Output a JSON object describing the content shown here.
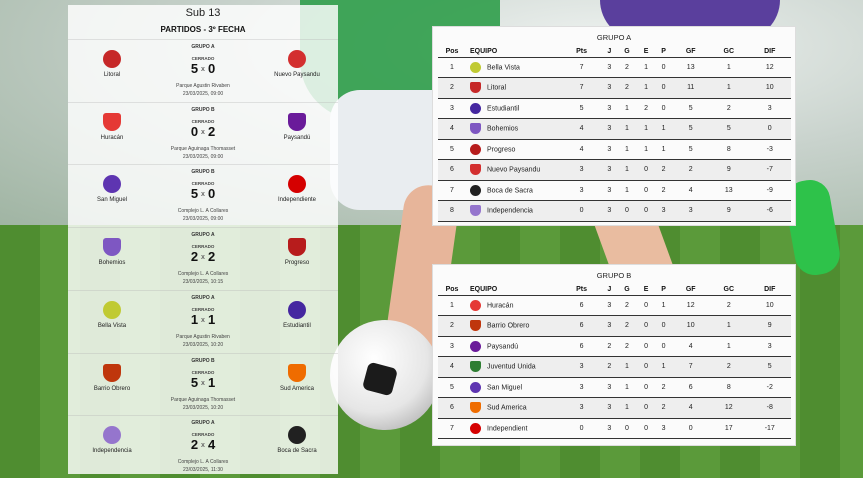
{
  "fixtures": {
    "title": "Sub 13",
    "subtitle": "PARTIDOS - 3º FECHA",
    "matches": [
      {
        "group": "GRUPO A",
        "status": "CERRADO",
        "home": "Litoral",
        "home_score": "5",
        "away_score": "0",
        "away": "Nuevo Paysandu",
        "venue": "Parque Agustin Rivaben",
        "date": "23/03/2025, 09:00"
      },
      {
        "group": "GRUPO B",
        "status": "CERRADO",
        "home": "Huracán",
        "home_score": "0",
        "away_score": "2",
        "away": "Paysandú",
        "venue": "Parque Aguinaga Thomasset",
        "date": "23/03/2025, 09:00"
      },
      {
        "group": "GRUPO B",
        "status": "CERRADO",
        "home": "San Miguel",
        "home_score": "5",
        "away_score": "0",
        "away": "Independiente",
        "venue": "Complejo L. A Collares",
        "date": "23/03/2025, 09:00"
      },
      {
        "group": "GRUPO A",
        "status": "CERRADO",
        "home": "Bohemios",
        "home_score": "2",
        "away_score": "2",
        "away": "Progreso",
        "venue": "Complejo L. A Collares",
        "date": "23/03/2025, 10:15"
      },
      {
        "group": "GRUPO A",
        "status": "CERRADO",
        "home": "Bella Vista",
        "home_score": "1",
        "away_score": "1",
        "away": "Estudiantil",
        "venue": "Parque Agustin Rivaben",
        "date": "23/03/2025, 10:20"
      },
      {
        "group": "GRUPO B",
        "status": "CERRADO",
        "home": "Barrio Obrero",
        "home_score": "5",
        "away_score": "1",
        "away": "Sud America",
        "venue": "Parque Aguinaga Thomasset",
        "date": "23/03/2025, 10:20"
      },
      {
        "group": "GRUPO A",
        "status": "CERRADO",
        "home": "Independencia",
        "home_score": "2",
        "away_score": "4",
        "away": "Boca de Sacra",
        "venue": "Complejo L. A Collares",
        "date": "23/03/2025, 11:30"
      }
    ],
    "score_separator": "x"
  },
  "headers": {
    "pos": "Pos",
    "equipo": "EQUIPO",
    "pts": "Pts",
    "j": "J",
    "g": "G",
    "e": "E",
    "p": "P",
    "gf": "GF",
    "gc": "GC",
    "dif": "DIF"
  },
  "group_a": {
    "title": "GRUPO A",
    "rows": [
      {
        "pos": "1",
        "team": "Bella Vista",
        "pts": "7",
        "j": "3",
        "g": "2",
        "e": "1",
        "p": "0",
        "gf": "13",
        "gc": "1",
        "dif": "12"
      },
      {
        "pos": "2",
        "team": "Litoral",
        "pts": "7",
        "j": "3",
        "g": "2",
        "e": "1",
        "p": "0",
        "gf": "11",
        "gc": "1",
        "dif": "10"
      },
      {
        "pos": "3",
        "team": "Estudiantil",
        "pts": "5",
        "j": "3",
        "g": "1",
        "e": "2",
        "p": "0",
        "gf": "5",
        "gc": "2",
        "dif": "3"
      },
      {
        "pos": "4",
        "team": "Bohemios",
        "pts": "4",
        "j": "3",
        "g": "1",
        "e": "1",
        "p": "1",
        "gf": "5",
        "gc": "5",
        "dif": "0"
      },
      {
        "pos": "5",
        "team": "Progreso",
        "pts": "4",
        "j": "3",
        "g": "1",
        "e": "1",
        "p": "1",
        "gf": "5",
        "gc": "8",
        "dif": "-3"
      },
      {
        "pos": "6",
        "team": "Nuevo Paysandu",
        "pts": "3",
        "j": "3",
        "g": "1",
        "e": "0",
        "p": "2",
        "gf": "2",
        "gc": "9",
        "dif": "-7"
      },
      {
        "pos": "7",
        "team": "Boca de Sacra",
        "pts": "3",
        "j": "3",
        "g": "1",
        "e": "0",
        "p": "2",
        "gf": "4",
        "gc": "13",
        "dif": "-9"
      },
      {
        "pos": "8",
        "team": "Independencia",
        "pts": "0",
        "j": "3",
        "g": "0",
        "e": "0",
        "p": "3",
        "gf": "3",
        "gc": "9",
        "dif": "-6"
      }
    ]
  },
  "group_b": {
    "title": "GRUPO B",
    "rows": [
      {
        "pos": "1",
        "team": "Huracán",
        "pts": "6",
        "j": "3",
        "g": "2",
        "e": "0",
        "p": "1",
        "gf": "12",
        "gc": "2",
        "dif": "10"
      },
      {
        "pos": "2",
        "team": "Barrio Obrero",
        "pts": "6",
        "j": "3",
        "g": "2",
        "e": "0",
        "p": "0",
        "gf": "10",
        "gc": "1",
        "dif": "9"
      },
      {
        "pos": "3",
        "team": "Paysandú",
        "pts": "6",
        "j": "2",
        "g": "2",
        "e": "0",
        "p": "0",
        "gf": "4",
        "gc": "1",
        "dif": "3"
      },
      {
        "pos": "4",
        "team": "Juventud Unida",
        "pts": "3",
        "j": "2",
        "g": "1",
        "e": "0",
        "p": "1",
        "gf": "7",
        "gc": "2",
        "dif": "5"
      },
      {
        "pos": "5",
        "team": "San Miguel",
        "pts": "3",
        "j": "3",
        "g": "1",
        "e": "0",
        "p": "2",
        "gf": "6",
        "gc": "8",
        "dif": "-2"
      },
      {
        "pos": "6",
        "team": "Sud America",
        "pts": "3",
        "j": "3",
        "g": "1",
        "e": "0",
        "p": "2",
        "gf": "4",
        "gc": "12",
        "dif": "-8"
      },
      {
        "pos": "7",
        "team": "Independient",
        "pts": "0",
        "j": "3",
        "g": "0",
        "e": "0",
        "p": "3",
        "gf": "0",
        "gc": "17",
        "dif": "-17"
      }
    ]
  },
  "crest_colors": {
    "Litoral": "#c62828",
    "Nuevo Paysandu": "#d32f2f",
    "Huracán": "#e53935",
    "Paysandú": "#6a1b9a",
    "San Miguel": "#5e35b1",
    "Independiente": "#d50000",
    "Bohemios": "#7e57c2",
    "Progreso": "#b71c1c",
    "Bella Vista": "#c0ca33",
    "Estudiantil": "#4527a0",
    "Barrio Obrero": "#bf360c",
    "Sud America": "#ef6c00",
    "Independencia": "#9575cd",
    "Boca de Sacra": "#212121",
    "Juventud Unida": "#2e7d32",
    "Independient": "#d50000"
  }
}
